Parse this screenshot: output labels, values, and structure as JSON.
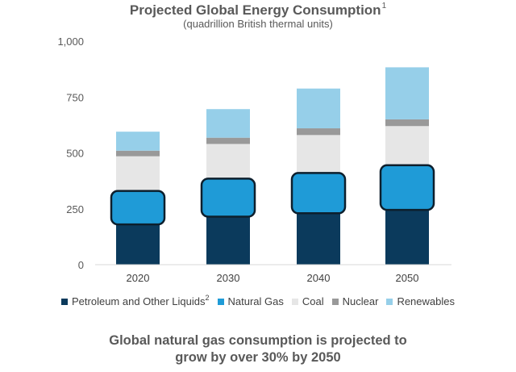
{
  "chart_data": {
    "type": "bar",
    "stacked": true,
    "title": "Projected Global Energy Consumption",
    "title_footnote": "1",
    "subtitle": "(quadrillion British thermal units)",
    "categories": [
      "2020",
      "2030",
      "2040",
      "2050"
    ],
    "ylim": [
      0,
      1000
    ],
    "yticks": [
      0,
      250,
      500,
      750,
      1000
    ],
    "ytick_labels": [
      "0",
      "250",
      "500",
      "750",
      "1,000"
    ],
    "grid": false,
    "legend_position": "bottom",
    "series": [
      {
        "name": "Petroleum and Other Liquids",
        "footnote": "2",
        "color": "#0b3a5c",
        "values": [
          180,
          215,
          230,
          245
        ]
      },
      {
        "name": "Natural Gas",
        "color": "#1f9bd7",
        "highlight": true,
        "values": [
          150,
          170,
          180,
          200
        ]
      },
      {
        "name": "Coal",
        "color": "#e6e6e6",
        "values": [
          155,
          155,
          170,
          175
        ]
      },
      {
        "name": "Nuclear",
        "color": "#999999",
        "values": [
          25,
          28,
          30,
          30
        ]
      },
      {
        "name": "Renewables",
        "color": "#96cfe9",
        "values": [
          85,
          128,
          178,
          233
        ]
      }
    ]
  },
  "footer": {
    "line1": "Global natural gas consumption is projected to",
    "line2": "grow by over 30% by 2050"
  }
}
